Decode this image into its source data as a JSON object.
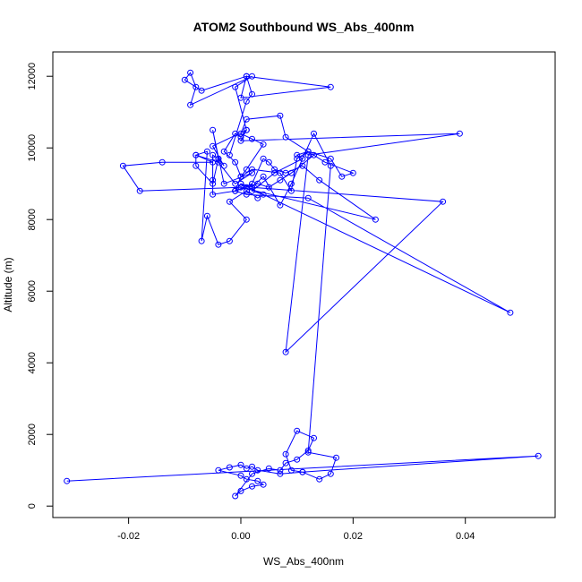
{
  "chart_data": {
    "type": "line",
    "title": "ATOM2 Southbound WS_Abs_400nm",
    "xlabel": "WS_Abs_400nm",
    "ylabel": "Altitude (m)",
    "xlim": [
      -0.0335,
      0.056
    ],
    "ylim": [
      -320,
      12680
    ],
    "x_ticks": [
      {
        "value": -0.02,
        "label": "-0.02"
      },
      {
        "value": 0.0,
        "label": "0.00"
      },
      {
        "value": 0.02,
        "label": "0.02"
      },
      {
        "value": 0.04,
        "label": "0.04"
      }
    ],
    "y_ticks": [
      {
        "value": 0,
        "label": "0"
      },
      {
        "value": 2000,
        "label": "2000"
      },
      {
        "value": 4000,
        "label": "4000"
      },
      {
        "value": 6000,
        "label": "6000"
      },
      {
        "value": 8000,
        "label": "8000"
      },
      {
        "value": 10000,
        "label": "10000"
      },
      {
        "value": 12000,
        "label": "12000"
      }
    ],
    "grid": false,
    "legend": "none",
    "marker": "open-circle",
    "series": [
      {
        "color": "#0000ff",
        "x": [
          -0.031,
          0.053,
          0.011,
          0.007,
          0.003,
          0.002,
          0.001,
          0.0,
          -0.002,
          -0.004,
          0.0,
          0.001,
          0.003,
          0.004,
          0.002,
          0.0,
          -0.001,
          0.002,
          0.005,
          0.007,
          0.008,
          0.01,
          0.012,
          0.013,
          0.01,
          0.008,
          0.009,
          0.011,
          0.014,
          0.016,
          0.017,
          0.012,
          0.016,
          0.013,
          0.009,
          0.007,
          0.004,
          0.002,
          0.0,
          -0.001,
          -0.005,
          -0.005,
          -0.005,
          -0.004,
          -0.003,
          -0.005,
          0.001,
          0.0,
          -0.001,
          -0.003,
          -0.001,
          0.0,
          0.001,
          0.004,
          0.002,
          0.0,
          0.001,
          0.007,
          0.008,
          0.012,
          0.01,
          0.011,
          0.006,
          0.002,
          0.004,
          0.003,
          0.001,
          -0.002,
          0.001,
          -0.002,
          -0.004,
          -0.006,
          -0.007,
          -0.006,
          -0.008,
          -0.004,
          -0.001,
          0.002,
          -0.003,
          -0.005,
          -0.004,
          -0.005,
          -0.008,
          -0.008,
          -0.005,
          -0.014,
          -0.021,
          -0.018,
          0.0,
          0.024,
          0.014,
          0.011,
          0.008,
          0.006,
          0.005,
          0.004,
          0.002,
          -0.001,
          0.0,
          0.002,
          0.007,
          0.009,
          0.01,
          0.012,
          0.016,
          0.018,
          0.02,
          0.015,
          0.013,
          0.009,
          0.007,
          0.005,
          0.003,
          0.001,
          -0.001,
          0.001,
          0.012,
          0.048,
          0.0,
          0.002,
          0.036,
          0.008,
          0.012,
          0.039,
          0.0,
          0.001,
          -0.001,
          0.002,
          -0.009,
          -0.008,
          -0.009,
          -0.01,
          -0.007,
          0.001,
          0.016,
          0.0,
          0.001,
          0.002,
          0.001,
          -0.002
        ],
        "y": [
          700,
          1400,
          950,
          900,
          1000,
          1100,
          1050,
          1150,
          1080,
          1000,
          850,
          750,
          700,
          600,
          550,
          420,
          280,
          900,
          1050,
          1000,
          1200,
          1300,
          1550,
          1900,
          2100,
          1450,
          1000,
          950,
          750,
          900,
          1350,
          1500,
          9500,
          10400,
          9000,
          8400,
          9200,
          8900,
          9000,
          8800,
          8700,
          9100,
          9800,
          9700,
          9500,
          10050,
          10500,
          10300,
          10400,
          9900,
          9600,
          9200,
          9400,
          10100,
          10250,
          10400,
          10800,
          10900,
          10300,
          9900,
          9800,
          9700,
          9300,
          8800,
          8700,
          8600,
          8800,
          8500,
          8000,
          7400,
          7300,
          8100,
          7400,
          9900,
          9800,
          9600,
          9000,
          9300,
          9000,
          10500,
          9700,
          9000,
          9500,
          9800,
          9600,
          9600,
          9500,
          8800,
          8900,
          8000,
          9100,
          9500,
          9300,
          9400,
          9600,
          9700,
          9000,
          8800,
          9200,
          9400,
          9300,
          8800,
          9700,
          9900,
          9700,
          9200,
          9300,
          9600,
          9800,
          9300,
          9100,
          8900,
          9000,
          8900,
          8800,
          8700,
          8600,
          5400,
          9000,
          8900,
          8500,
          4300,
          9800,
          10400,
          10200,
          10500,
          11700,
          12000,
          11200,
          11700,
          12100,
          11900,
          11600,
          12000,
          11700,
          11400,
          12000,
          11500,
          11300,
          9800
        ]
      }
    ]
  }
}
